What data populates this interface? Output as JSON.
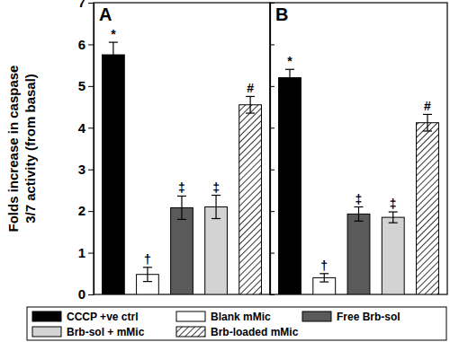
{
  "chart_data": [
    {
      "type": "bar",
      "title": "A",
      "ylabel": "Folds increase in caspase 3/7 activity (from basal)",
      "categories": [
        null
      ],
      "ylim": [
        0,
        7
      ],
      "yticks": [
        0,
        1,
        2,
        3,
        4,
        5,
        6,
        7
      ],
      "legend": "bottom",
      "series": [
        {
          "name": "CCCP +ve ctrl",
          "color": "#000000",
          "values": [
            5.75
          ],
          "error": [
            0.3
          ],
          "annotation": "*"
        },
        {
          "name": "Blank mMic",
          "color": "#ffffff",
          "values": [
            0.48
          ],
          "error": [
            0.17
          ],
          "annotation": "†"
        },
        {
          "name": "Free Brb-sol",
          "color": "#5a5a5a",
          "values": [
            2.08
          ],
          "error": [
            0.28
          ],
          "annotation": "‡"
        },
        {
          "name": "Brb-sol + mMic",
          "color": "#d3d3d3",
          "values": [
            2.1
          ],
          "error": [
            0.28
          ],
          "annotation": "‡"
        },
        {
          "name": "Brb-loaded mMic",
          "color": "#ffffff",
          "line_style": "hatched",
          "values": [
            4.55
          ],
          "error": [
            0.2
          ],
          "annotation": "#"
        }
      ]
    },
    {
      "type": "bar",
      "title": "B",
      "categories": [
        null
      ],
      "ylim": [
        0,
        7
      ],
      "yticks": [
        0,
        1,
        2,
        3,
        4,
        5,
        6,
        7
      ],
      "tick_labels": false,
      "series": [
        {
          "color": "#000000",
          "values": [
            5.2
          ],
          "error": [
            0.2
          ],
          "annotation": "*"
        },
        {
          "color": "#ffffff",
          "values": [
            0.4
          ],
          "error": [
            0.1
          ],
          "annotation": "†"
        },
        {
          "color": "#5a5a5a",
          "values": [
            1.93
          ],
          "error": [
            0.17
          ],
          "annotation": "‡"
        },
        {
          "color": "#d3d3d3",
          "values": [
            1.85
          ],
          "error": [
            0.13
          ],
          "annotation": "‡"
        },
        {
          "color": "#ffffff",
          "line_style": "hatched",
          "values": [
            4.12
          ],
          "error": [
            0.2
          ],
          "annotation": "#"
        }
      ]
    }
  ]
}
